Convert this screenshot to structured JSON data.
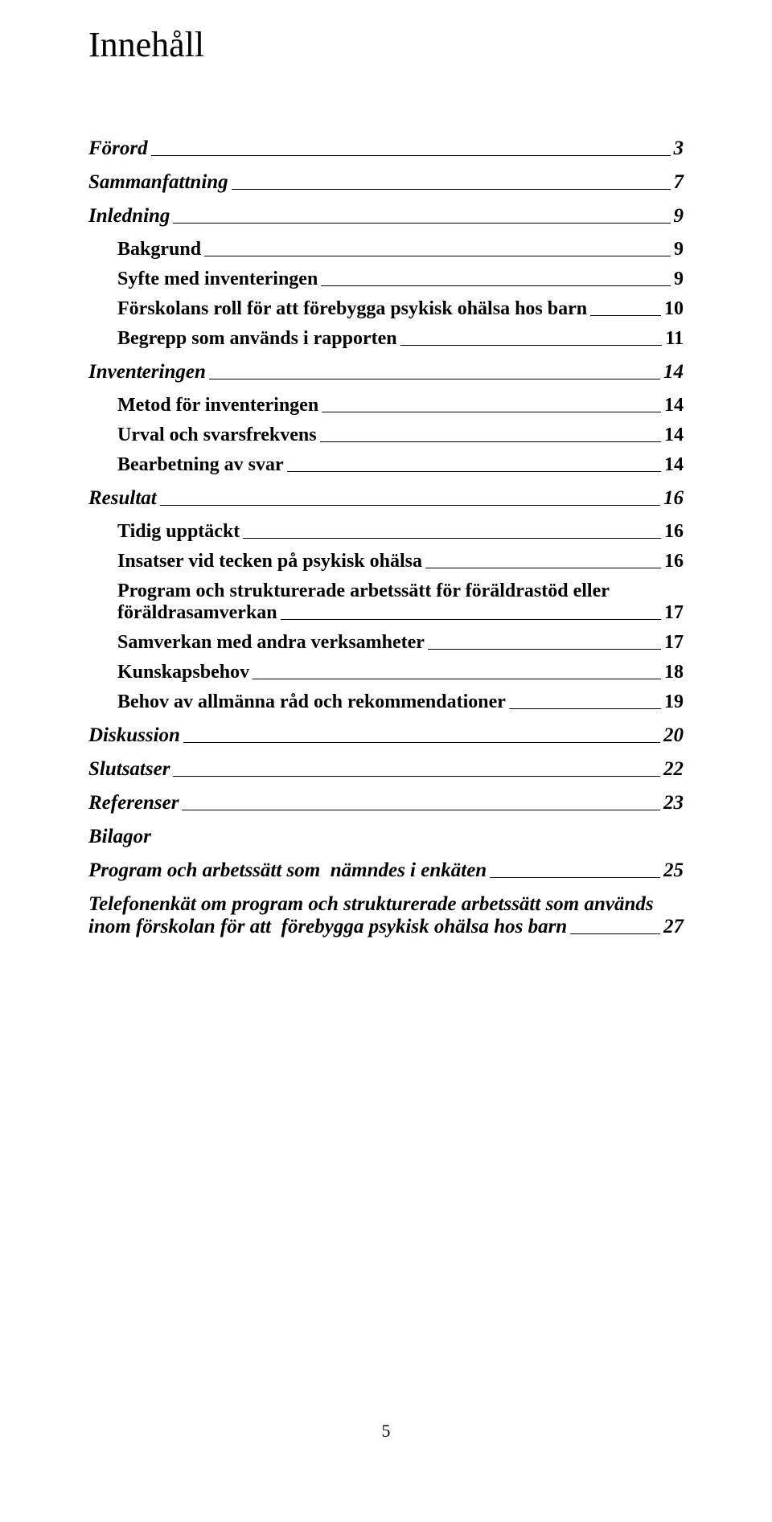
{
  "title": "Innehåll",
  "entries": [
    {
      "level": 1,
      "label": "Förord",
      "page": "3"
    },
    {
      "level": 1,
      "label": "Sammanfattning",
      "page": "7"
    },
    {
      "level": 1,
      "label": "Inledning",
      "page": "9"
    },
    {
      "level": 2,
      "label": "Bakgrund",
      "page": "9"
    },
    {
      "level": 2,
      "label": "Syfte med inventeringen",
      "page": "9"
    },
    {
      "level": 2,
      "label": "Förskolans roll för att förebygga psykisk ohälsa hos barn",
      "page": "10"
    },
    {
      "level": 2,
      "label": "Begrepp som används i rapporten",
      "page": "11"
    },
    {
      "level": 1,
      "label": "Inventeringen",
      "page": "14"
    },
    {
      "level": 2,
      "label": "Metod för inventeringen",
      "page": "14"
    },
    {
      "level": 2,
      "label": "Urval och svarsfrekvens",
      "page": "14"
    },
    {
      "level": 2,
      "label": "Bearbetning av svar",
      "page": "14"
    },
    {
      "level": 1,
      "label": "Resultat",
      "page": "16"
    },
    {
      "level": 2,
      "label": "Tidig upptäckt",
      "page": "16"
    },
    {
      "level": 2,
      "label": "Insatser vid tecken på psykisk ohälsa",
      "page": "16"
    },
    {
      "level": 2,
      "label_line1": "Program och strukturerade arbetssätt för föräldrastöd eller",
      "label_line2": "föräldrasamverkan",
      "page": "17",
      "multiline": true
    },
    {
      "level": 2,
      "label": "Samverkan med andra verksamheter",
      "page": "17"
    },
    {
      "level": 2,
      "label": "Kunskapsbehov",
      "page": "18"
    },
    {
      "level": 2,
      "label": "Behov av allmänna råd och rekommendationer",
      "page": "19"
    },
    {
      "level": 1,
      "label": "Diskussion",
      "page": "20"
    },
    {
      "level": 1,
      "label": "Slutsatser",
      "page": "22"
    },
    {
      "level": 1,
      "label": "Referenser",
      "page": "23"
    },
    {
      "level": 1,
      "label": "Bilagor",
      "nopage": true
    },
    {
      "level": 1,
      "label": "Program och arbetssätt som  nämndes i enkäten",
      "page": "25"
    },
    {
      "level": 1,
      "label_line1": "Telefonenkät om program  och strukturerade arbetssätt som  används",
      "label_line2": "inom förskolan för att  förebygga psykisk ohälsa hos barn",
      "page": "27",
      "multiline": true
    }
  ],
  "page_number": "5"
}
